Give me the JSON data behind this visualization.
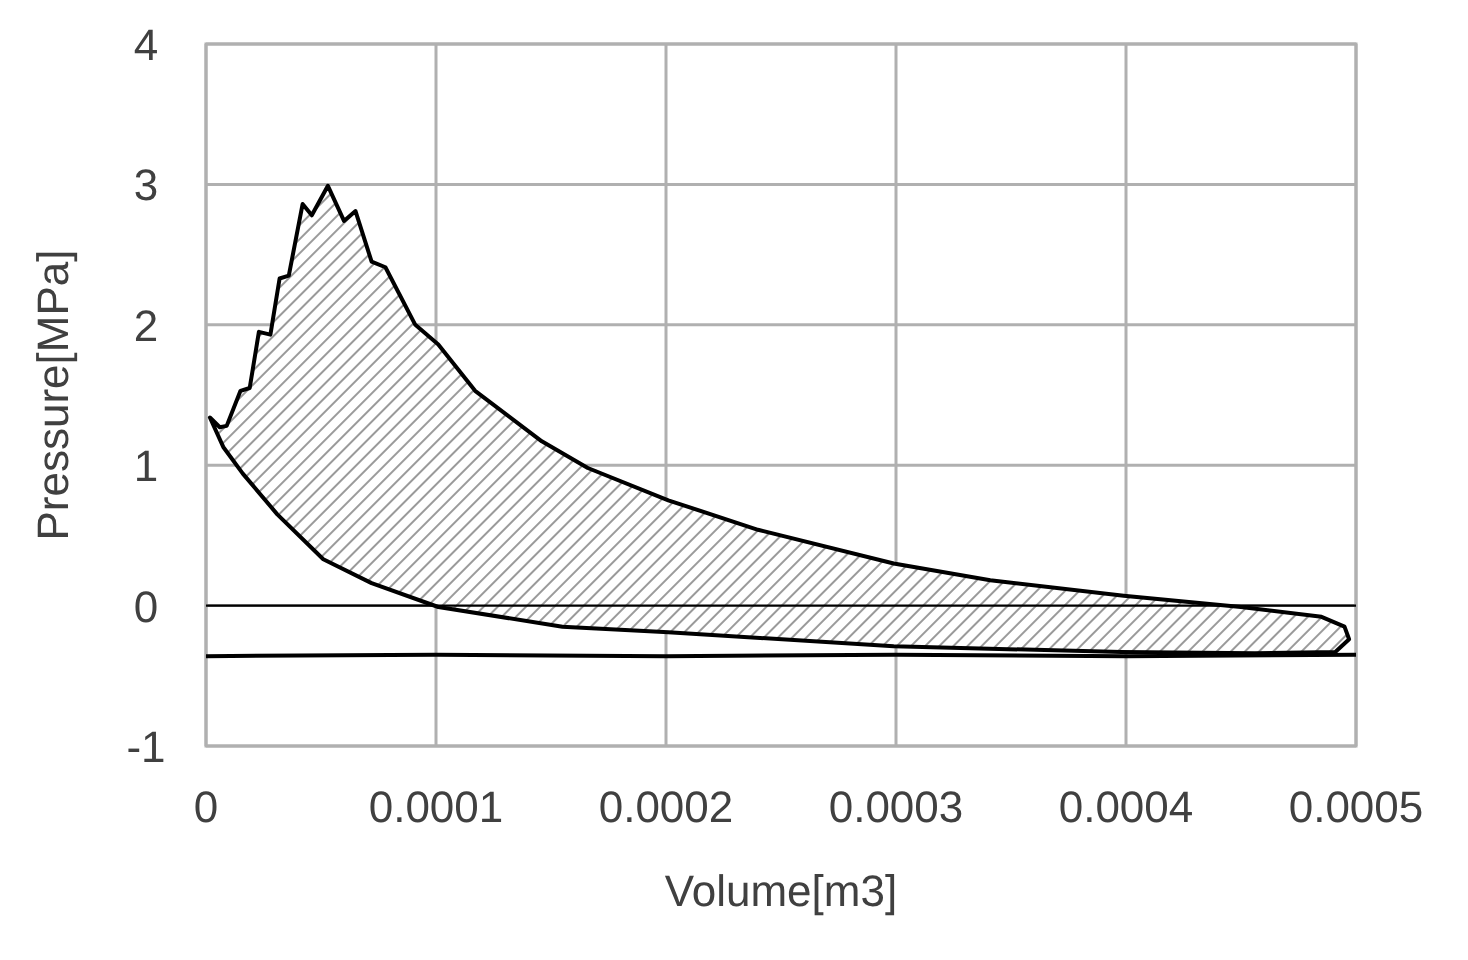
{
  "chart_data": {
    "type": "line",
    "xlabel": "Volume[m3]",
    "ylabel": "Pressure[MPa]",
    "xlim": [
      0,
      0.0005
    ],
    "ylim": [
      -1,
      4
    ],
    "xticks": [
      0,
      0.0001,
      0.0002,
      0.0003,
      0.0004,
      0.0005
    ],
    "yticks": [
      -1,
      0,
      1,
      2,
      3,
      4
    ],
    "grid": true,
    "marker": "none",
    "line_style": "solid",
    "ref_lines": [
      {
        "axis": "y",
        "value": 0,
        "color": "#000000"
      }
    ],
    "series": [
      {
        "type": "area",
        "color": "#000000",
        "x": [
          1.7e-06,
          6e-06,
          9e-06,
          1.5e-05,
          1.9e-05,
          2.3e-05,
          2.8e-05,
          3.2e-05,
          3.6e-05,
          4.2e-05,
          4.6e-05,
          5.3e-05,
          6e-05,
          6.5e-05,
          7.2e-05,
          7.8e-05,
          9.1e-05,
          0.000101,
          0.000117,
          0.000146,
          0.000166,
          0.000201,
          0.00024,
          0.000299,
          0.000341,
          0.000399,
          0.00045,
          0.000485,
          0.000495,
          0.000497,
          0.000491,
          0.000456,
          0.000398,
          0.000299,
          0.000201,
          0.000155,
          0.000101,
          7.2e-05,
          5.1e-05,
          3.1e-05,
          1.6e-05,
          7.5e-06,
          1.7e-06
        ],
        "values": [
          1.34,
          1.27,
          1.28,
          1.53,
          1.55,
          1.95,
          1.93,
          2.33,
          2.35,
          2.86,
          2.78,
          2.99,
          2.74,
          2.81,
          2.45,
          2.41,
          2.0,
          1.86,
          1.53,
          1.17,
          0.98,
          0.75,
          0.54,
          0.3,
          0.18,
          0.07,
          -0.01,
          -0.08,
          -0.15,
          -0.24,
          -0.33,
          -0.34,
          -0.33,
          -0.29,
          -0.19,
          -0.15,
          -0.01,
          0.16,
          0.33,
          0.65,
          0.94,
          1.13,
          1.34
        ]
      },
      {
        "type": "line",
        "color": "#000000",
        "x": [
          0,
          0.0001,
          0.0002,
          0.0003,
          0.0004,
          0.0005
        ],
        "values": [
          -0.36,
          -0.35,
          -0.36,
          -0.35,
          -0.36,
          -0.35
        ]
      }
    ]
  }
}
